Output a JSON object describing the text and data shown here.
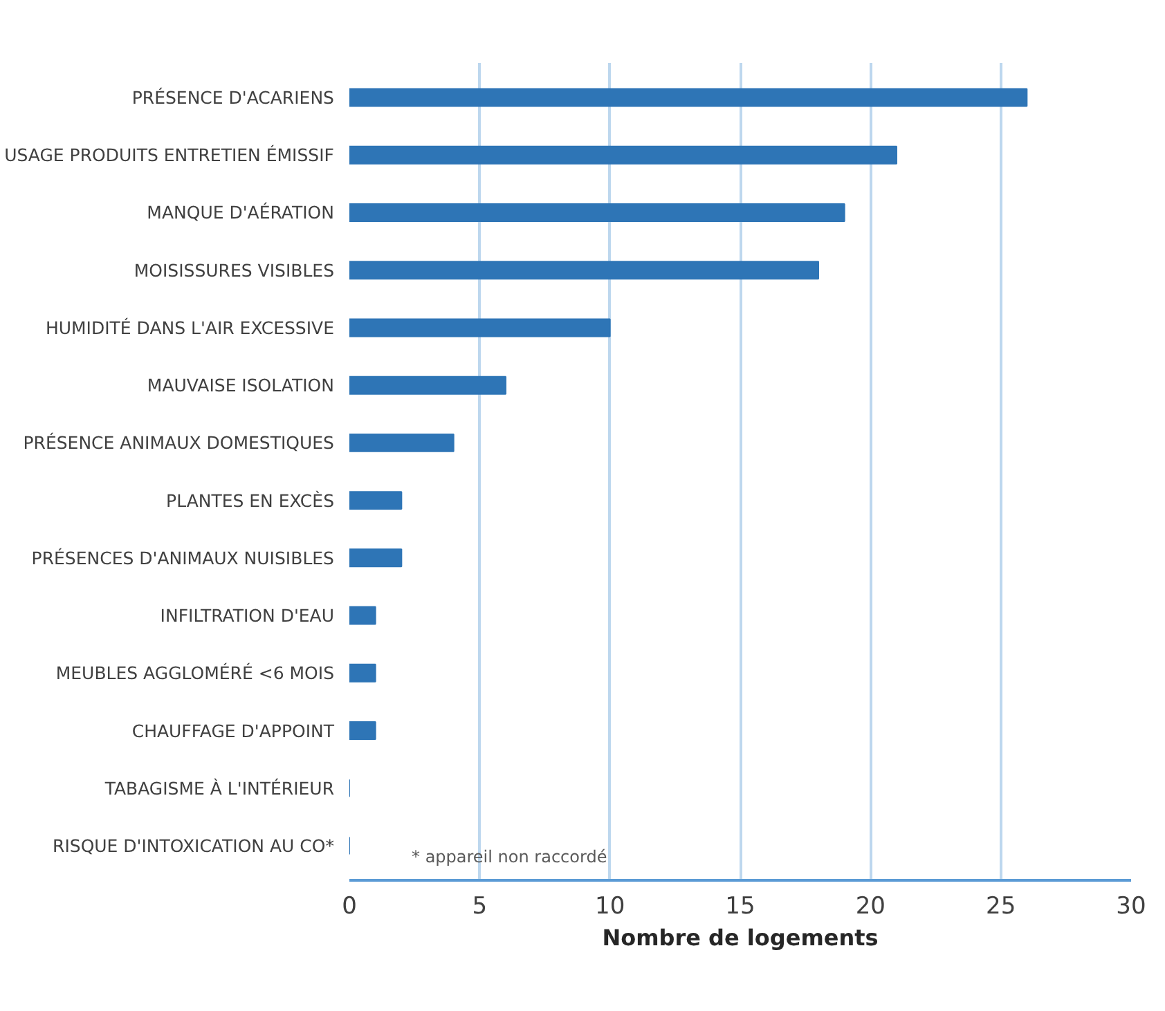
{
  "chart_data": {
    "type": "bar",
    "orientation": "horizontal",
    "categories": [
      "PRÉSENCE D'ACARIENS",
      "USAGE PRODUITS ENTRETIEN ÉMISSIF",
      "MANQUE D'AÉRATION",
      "MOISISSURES VISIBLES",
      "HUMIDITÉ DANS L'AIR EXCESSIVE",
      "MAUVAISE ISOLATION",
      "PRÉSENCE ANIMAUX DOMESTIQUES",
      "PLANTES EN EXCÈS",
      "PRÉSENCES D'ANIMAUX NUISIBLES",
      "INFILTRATION D'EAU",
      "MEUBLES AGGLOMÉRÉ <6 MOIS",
      "CHAUFFAGE D'APPOINT",
      "TABAGISME À L'INTÉRIEUR",
      "RISQUE D'INTOXICATION AU CO*"
    ],
    "values": [
      26,
      21,
      19,
      18,
      10,
      6,
      4,
      2,
      2,
      1,
      1,
      1,
      0,
      0
    ],
    "color": "#2e75b6",
    "xlim": [
      0,
      30
    ],
    "xticks": [
      0,
      5,
      10,
      15,
      20,
      25,
      30
    ],
    "xlabel": "Nombre de logements",
    "grid": "x",
    "annotations": [
      "* appareil non raccordé"
    ]
  }
}
